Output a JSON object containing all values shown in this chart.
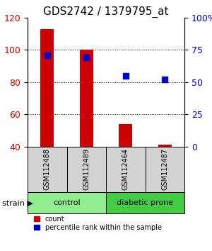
{
  "title": "GDS2742 / 1379795_at",
  "samples": [
    "GSM112488",
    "GSM112489",
    "GSM112464",
    "GSM112487"
  ],
  "counts": [
    113,
    100,
    54,
    41
  ],
  "percentiles": [
    71,
    69,
    55,
    52
  ],
  "ylim_left": [
    40,
    120
  ],
  "ylim_right": [
    0,
    100
  ],
  "yticks_left": [
    40,
    60,
    80,
    100,
    120
  ],
  "yticks_right": [
    0,
    25,
    50,
    75,
    100
  ],
  "yticklabels_right": [
    "0",
    "25",
    "50",
    "75",
    "100%"
  ],
  "bar_color": "#cc0000",
  "dot_color": "#0000cc",
  "groups": [
    {
      "label": "control",
      "samples": [
        0,
        1
      ],
      "color": "#90ee90"
    },
    {
      "label": "diabetic prone",
      "samples": [
        2,
        3
      ],
      "color": "#44cc44"
    }
  ],
  "grid_color": "black",
  "grid_style": "dotted",
  "sample_box_color": "#d3d3d3",
  "title_fontsize": 11,
  "axis_label_color_left": "#cc0000",
  "axis_label_color_right": "#0000cc",
  "bar_width": 0.35,
  "dot_size": 35
}
